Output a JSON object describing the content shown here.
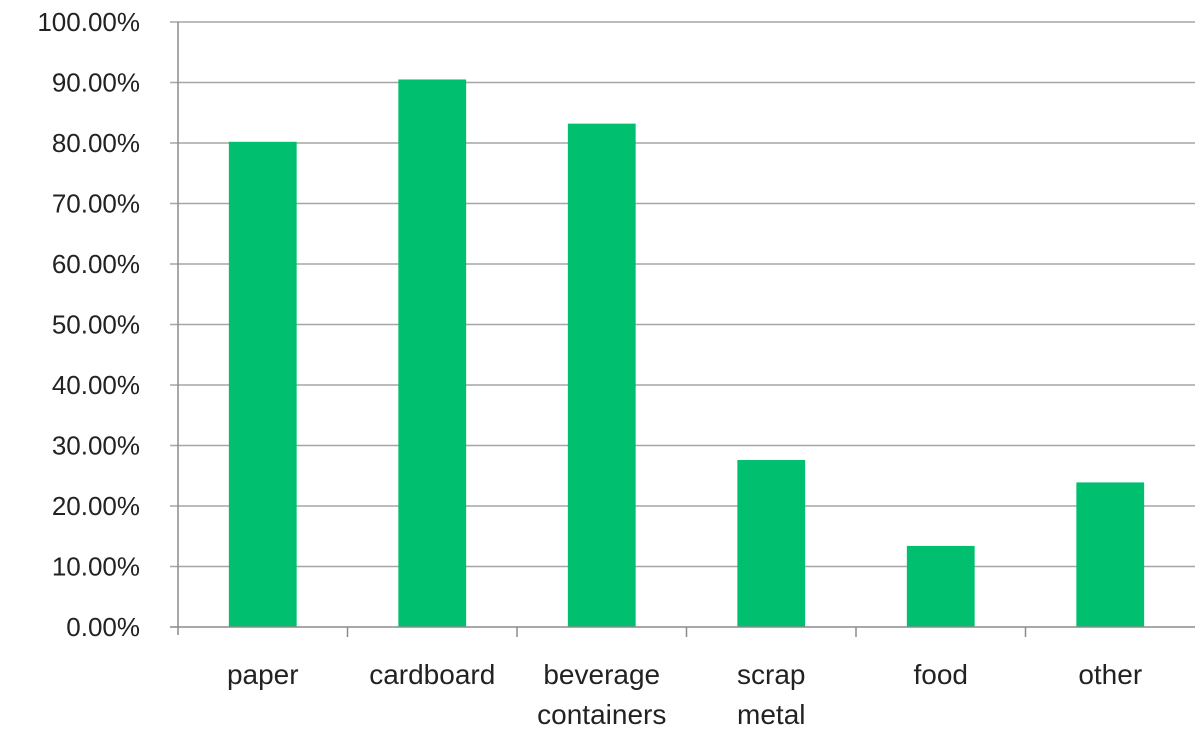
{
  "chart_data": {
    "type": "bar",
    "categories": [
      "paper",
      "cardboard",
      "beverage containers",
      "scrap metal",
      "food",
      "other"
    ],
    "category_lines": [
      [
        "paper"
      ],
      [
        "cardboard"
      ],
      [
        "beverage",
        "containers"
      ],
      [
        "scrap",
        "metal"
      ],
      [
        "food"
      ],
      [
        "other"
      ]
    ],
    "values": [
      80.2,
      90.5,
      83.2,
      27.6,
      13.4,
      23.9
    ],
    "y_ticks": [
      "0.00%",
      "10.00%",
      "20.00%",
      "30.00%",
      "40.00%",
      "50.00%",
      "60.00%",
      "70.00%",
      "80.00%",
      "90.00%",
      "100.00%"
    ],
    "ylim": [
      0,
      100
    ],
    "y_unit": "%",
    "grid": true,
    "legend": "none",
    "bar_color": "#00bf6f"
  }
}
